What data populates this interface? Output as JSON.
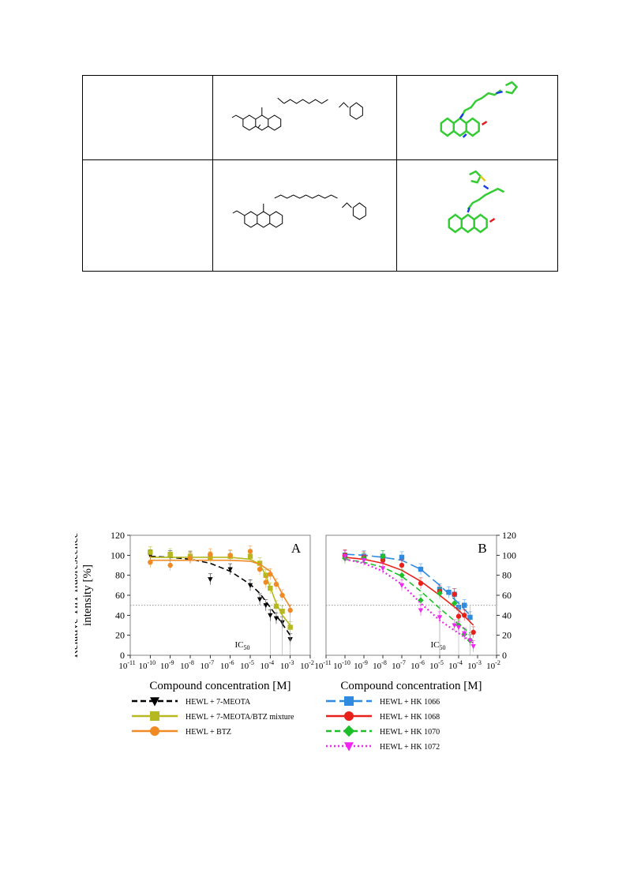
{
  "table": {
    "rows": [
      {
        "label": "",
        "structure": "2d-skeletal-acridine-heptyl-benzothiazole",
        "model": "3d-stick-model-green"
      },
      {
        "label": "",
        "structure": "2d-skeletal-acridine-nonyl-benzothiazole",
        "model": "3d-stick-model-green"
      }
    ]
  },
  "colors": {
    "black": "#000000",
    "olive": "#b5b81e",
    "orange": "#f08a24",
    "blue": "#2f8be0",
    "red": "#e8201a",
    "green": "#1fbf2a",
    "magenta": "#f025f0",
    "molecule_green": "#33cc33",
    "molecule_blue": "#1a3ce6",
    "molecule_red": "#e61a1a"
  },
  "chart_data": [
    {
      "type": "scatter",
      "panel_label": "A",
      "ylabel": "Relative ThT fluorescence intensity [%]",
      "xlabel": "Compound concentration [M]",
      "x_scale": "log",
      "xlim": [
        1e-11,
        0.01
      ],
      "ylim": [
        0,
        120
      ],
      "y_ticks": [
        "0",
        "20",
        "40",
        "60",
        "80",
        "100",
        "120"
      ],
      "x_tick_exponents": [
        "-11",
        "-10",
        "-9",
        "-8",
        "-7",
        "-6",
        "-5",
        "-4",
        "-3",
        "-2"
      ],
      "x_tick_base": "10",
      "reference_line_y": 50,
      "annotation": {
        "text": "IC",
        "sub": "50"
      },
      "series": [
        {
          "name": "HEWL + 7-MEOTA",
          "color": "#000000",
          "marker": "triangle-down",
          "line": "dashed",
          "x": [
            1e-10,
            1e-09,
            1e-08,
            1e-07,
            1e-06,
            1e-05,
            3e-05,
            6e-05,
            0.0001,
            0.0002,
            0.0004,
            0.001
          ],
          "y": [
            100,
            99,
            98,
            76,
            86,
            70,
            56,
            50,
            40,
            37,
            33,
            16
          ],
          "fit": [
            [
              1e-10,
              99
            ],
            [
              1e-09,
              98
            ],
            [
              1e-08,
              96
            ],
            [
              1e-07,
              92
            ],
            [
              1e-06,
              84
            ],
            [
              1e-05,
              71
            ],
            [
              3e-05,
              62
            ],
            [
              0.0001,
              48
            ],
            [
              0.0003,
              35
            ],
            [
              0.001,
              20
            ]
          ]
        },
        {
          "name": "HEWL + 7-MEOTA/BTZ mixture",
          "color": "#b5b81e",
          "marker": "square",
          "line": "solid",
          "x": [
            1e-10,
            1e-09,
            1e-08,
            1e-07,
            1e-06,
            1e-05,
            3e-05,
            6e-05,
            0.0001,
            0.0002,
            0.0004,
            0.001
          ],
          "y": [
            103,
            101,
            99,
            98,
            99,
            99,
            92,
            80,
            67,
            49,
            44,
            28
          ],
          "fit": [
            [
              1e-10,
              98
            ],
            [
              1e-08,
              98
            ],
            [
              1e-06,
              98
            ],
            [
              1e-05,
              96
            ],
            [
              3e-05,
              91
            ],
            [
              6e-05,
              80
            ],
            [
              0.0001,
              68
            ],
            [
              0.0002,
              52
            ],
            [
              0.0004,
              40
            ],
            [
              0.001,
              30
            ]
          ]
        },
        {
          "name": "HEWL + BTZ",
          "color": "#f08a24",
          "marker": "circle",
          "line": "solid",
          "x": [
            1e-10,
            1e-09,
            1e-08,
            1e-07,
            1e-06,
            1e-05,
            3e-05,
            6e-05,
            0.0001,
            0.0002,
            0.0004,
            0.001
          ],
          "y": [
            93,
            90,
            97,
            101,
            100,
            104,
            86,
            73,
            81,
            71,
            60,
            45
          ],
          "fit": [
            [
              1e-10,
              95
            ],
            [
              1e-08,
              95
            ],
            [
              1e-06,
              95
            ],
            [
              1e-05,
              94
            ],
            [
              3e-05,
              91
            ],
            [
              0.0001,
              84
            ],
            [
              0.0002,
              73
            ],
            [
              0.0004,
              61
            ],
            [
              0.001,
              48
            ]
          ]
        }
      ]
    },
    {
      "type": "scatter",
      "panel_label": "B",
      "ylabel": "Relative ThT fluorescence intensity [%]",
      "xlabel": "Compound concentration [M]",
      "x_scale": "log",
      "xlim": [
        1e-11,
        0.01
      ],
      "ylim": [
        0,
        120
      ],
      "y_ticks": [
        "0",
        "20",
        "40",
        "60",
        "80",
        "100",
        "120"
      ],
      "x_tick_exponents": [
        "-11",
        "-10",
        "-9",
        "-8",
        "-7",
        "-6",
        "-5",
        "-4",
        "-3",
        "-2"
      ],
      "x_tick_base": "10",
      "reference_line_y": 50,
      "annotation": {
        "text": "IC",
        "sub": "50"
      },
      "series": [
        {
          "name": "HEWL + HK 1066",
          "color": "#2f8be0",
          "marker": "square",
          "line": "long-dashed",
          "x": [
            1e-10,
            1e-09,
            1e-08,
            1e-07,
            1e-06,
            1e-05,
            3e-05,
            6e-05,
            0.0001,
            0.0002,
            0.0004
          ],
          "y": [
            100,
            99,
            99,
            98,
            86,
            66,
            63,
            61,
            48,
            50,
            38
          ],
          "fit": [
            [
              1e-10,
              101
            ],
            [
              1e-09,
              100
            ],
            [
              1e-08,
              98
            ],
            [
              1e-07,
              95
            ],
            [
              1e-06,
              86
            ],
            [
              1e-05,
              70
            ],
            [
              0.0001,
              52
            ],
            [
              0.0004,
              40
            ]
          ]
        },
        {
          "name": "HEWL + HK 1068",
          "color": "#e8201a",
          "marker": "circle",
          "line": "solid",
          "x": [
            1e-10,
            1e-09,
            1e-08,
            1e-07,
            1e-06,
            1e-05,
            6e-05,
            0.0001,
            0.0002,
            0.0006
          ],
          "y": [
            100,
            98,
            95,
            90,
            72,
            64,
            61,
            39,
            40,
            23
          ],
          "fit": [
            [
              1e-10,
              98
            ],
            [
              1e-09,
              96
            ],
            [
              1e-08,
              92
            ],
            [
              1e-07,
              85
            ],
            [
              1e-06,
              74
            ],
            [
              1e-05,
              60
            ],
            [
              0.0001,
              45
            ],
            [
              0.0006,
              30
            ]
          ]
        },
        {
          "name": "HEWL + HK 1070",
          "color": "#1fbf2a",
          "marker": "diamond",
          "line": "dashed",
          "x": [
            1e-10,
            1e-09,
            1e-08,
            1e-07,
            1e-06,
            1e-05,
            6e-05,
            0.0001,
            0.0002,
            0.0004
          ],
          "y": [
            97,
            97,
            99,
            80,
            55,
            62,
            52,
            30,
            21,
            15
          ],
          "fit": [
            [
              1e-10,
              96
            ],
            [
              1e-09,
              93
            ],
            [
              1e-08,
              88
            ],
            [
              1e-07,
              79
            ],
            [
              1e-06,
              64
            ],
            [
              1e-05,
              47
            ],
            [
              0.0001,
              31
            ],
            [
              0.0004,
              22
            ]
          ]
        },
        {
          "name": "HEWL + HK 1072",
          "color": "#f025f0",
          "marker": "triangle-down",
          "line": "dotted",
          "x": [
            1e-10,
            1e-09,
            1e-08,
            1e-07,
            1e-06,
            1e-05,
            6e-05,
            0.0001,
            0.0002,
            0.0004,
            0.0006
          ],
          "y": [
            99,
            95,
            87,
            70,
            45,
            38,
            30,
            28,
            22,
            15,
            9
          ],
          "fit": [
            [
              1e-10,
              96
            ],
            [
              1e-09,
              92
            ],
            [
              1e-08,
              84
            ],
            [
              1e-07,
              71
            ],
            [
              1e-06,
              52
            ],
            [
              1e-05,
              35
            ],
            [
              0.0001,
              22
            ],
            [
              0.0006,
              12
            ]
          ]
        }
      ]
    }
  ]
}
